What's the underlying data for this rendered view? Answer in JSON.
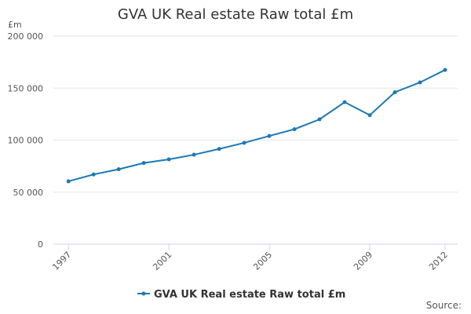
{
  "chart_data": {
    "type": "line",
    "title": "GVA UK Real estate Raw total £m",
    "y_unit": "£m",
    "source": "Source:",
    "x": [
      1997,
      1998,
      1999,
      2000,
      2001,
      2002,
      2003,
      2004,
      2005,
      2006,
      2007,
      2008,
      2009,
      2010,
      2011,
      2012
    ],
    "series": [
      {
        "name": "GVA UK Real estate Raw total £m",
        "color": "#1a7ab5",
        "values": [
          60400,
          67000,
          72000,
          78000,
          81500,
          86000,
          91500,
          97400,
          104000,
          110500,
          120000,
          136500,
          124000,
          146000,
          155500,
          167500
        ]
      }
    ],
    "xlim": [
      1996.4,
      2012.5
    ],
    "xticks": [
      1997,
      2001,
      2005,
      2009,
      2012
    ],
    "ylim": [
      0,
      200000
    ],
    "yticks": [
      0,
      {
        "value": 50000,
        "label": "50 000"
      },
      {
        "value": 100000,
        "label": "100 000"
      },
      {
        "value": 150000,
        "label": "150 000"
      },
      {
        "value": 200000,
        "label": "200 000"
      }
    ],
    "grid": true
  }
}
